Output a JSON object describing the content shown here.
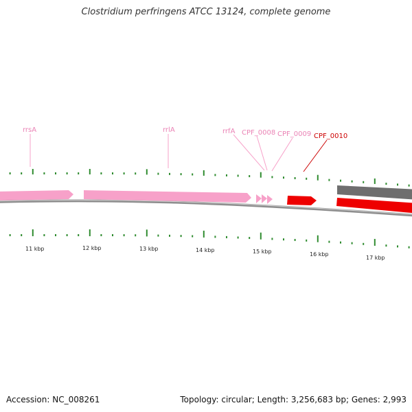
{
  "title": "Clostridium perfringens ATCC 13124, complete genome",
  "accession": "Accession: NC_008261",
  "summary": "Topology: circular; Length: 3,256,683 bp; Genes: 2,993",
  "colors": {
    "rna": "#f7a1c9",
    "rna_label": "#ea83b5",
    "highlight": "#ee0000",
    "highlight_label": "#cc0000",
    "cds_gray": "#707070",
    "tick": "#2e8b2e",
    "backbone": "#888888"
  },
  "scale_labels": [
    "11 kbp",
    "12 kbp",
    "13 kbp",
    "14 kbp",
    "15 kbp",
    "16 kbp",
    "17 kbp"
  ],
  "genes": [
    {
      "name": "rrsA",
      "type": "rrna",
      "start_kbp": 10.1,
      "end_kbp": 11.8,
      "label_kbp": 10.95
    },
    {
      "name": "rrlA",
      "type": "rrna",
      "start_kbp": 12.0,
      "end_kbp": 14.8,
      "label_kbp": 13.3
    },
    {
      "name": "rrfA",
      "type": "rrna",
      "start_kbp": 14.85,
      "end_kbp": 14.97,
      "label_kbp": 15.0
    },
    {
      "name": "CPF_0008",
      "type": "trna",
      "start_kbp": 15.0,
      "end_kbp": 15.08,
      "label_kbp": 15.07
    },
    {
      "name": "CPF_0009",
      "type": "trna",
      "start_kbp": 15.09,
      "end_kbp": 15.17,
      "label_kbp": 15.16
    },
    {
      "name": "CPF_0010",
      "type": "cds",
      "start_kbp": 15.4,
      "end_kbp": 15.9,
      "label_kbp": 15.7
    }
  ]
}
